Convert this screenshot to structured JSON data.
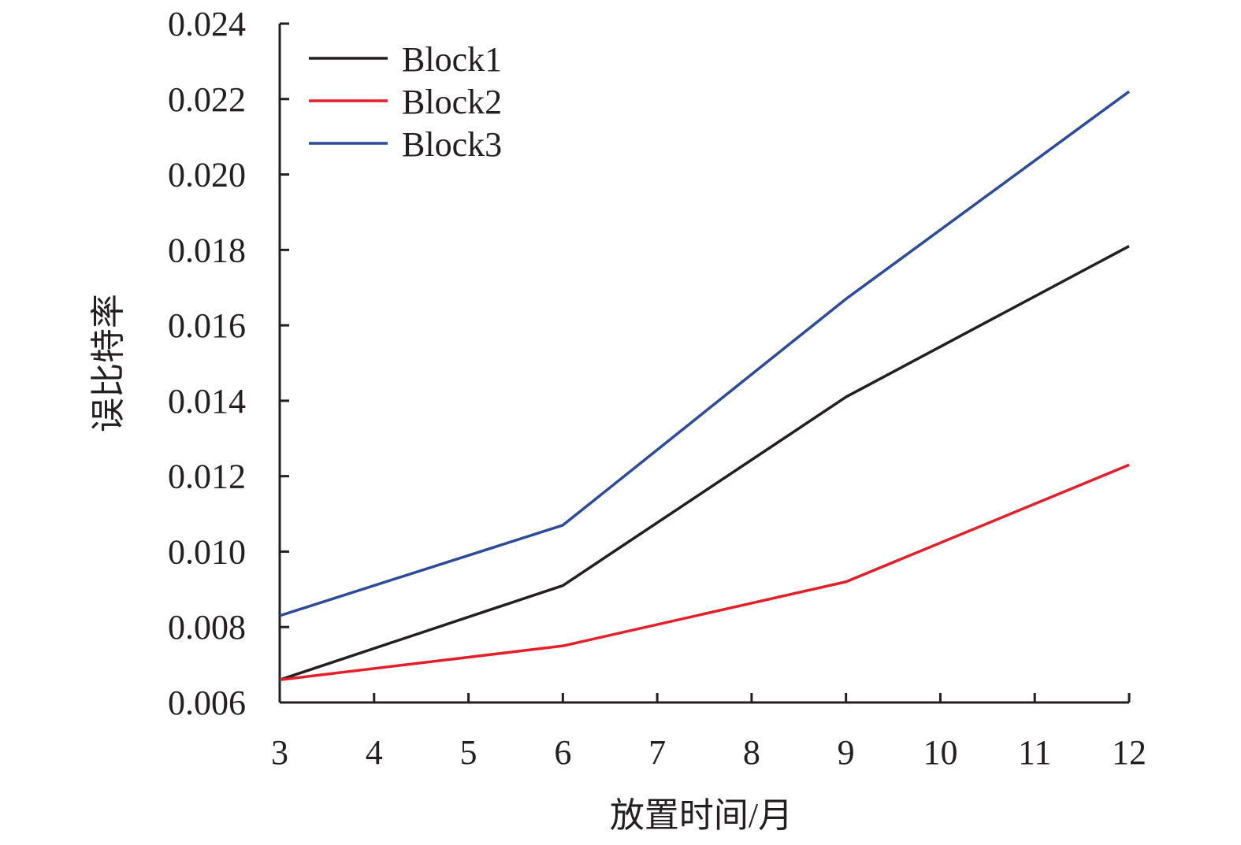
{
  "chart_data": {
    "type": "line",
    "title": "",
    "xlabel": "放置时间/月",
    "ylabel": "误比特率",
    "x": [
      3,
      6,
      9,
      12
    ],
    "xlim": [
      3,
      12
    ],
    "ylim": [
      0.006,
      0.024
    ],
    "x_ticks": [
      "3",
      "4",
      "5",
      "6",
      "7",
      "8",
      "9",
      "10",
      "11",
      "12"
    ],
    "y_ticks": [
      "0.006",
      "0.008",
      "0.010",
      "0.012",
      "0.014",
      "0.016",
      "0.018",
      "0.020",
      "0.022",
      "0.024"
    ],
    "grid": false,
    "legend_position": "top-left",
    "series": [
      {
        "name": "Block1",
        "color": "#231f20",
        "values": [
          0.0066,
          0.0091,
          0.0141,
          0.0181
        ]
      },
      {
        "name": "Block2",
        "color": "#e3202a",
        "values": [
          0.0066,
          0.0075,
          0.0092,
          0.0123
        ]
      },
      {
        "name": "Block3",
        "color": "#2e4a9a",
        "values": [
          0.0083,
          0.0107,
          0.0167,
          0.0222
        ]
      }
    ]
  }
}
